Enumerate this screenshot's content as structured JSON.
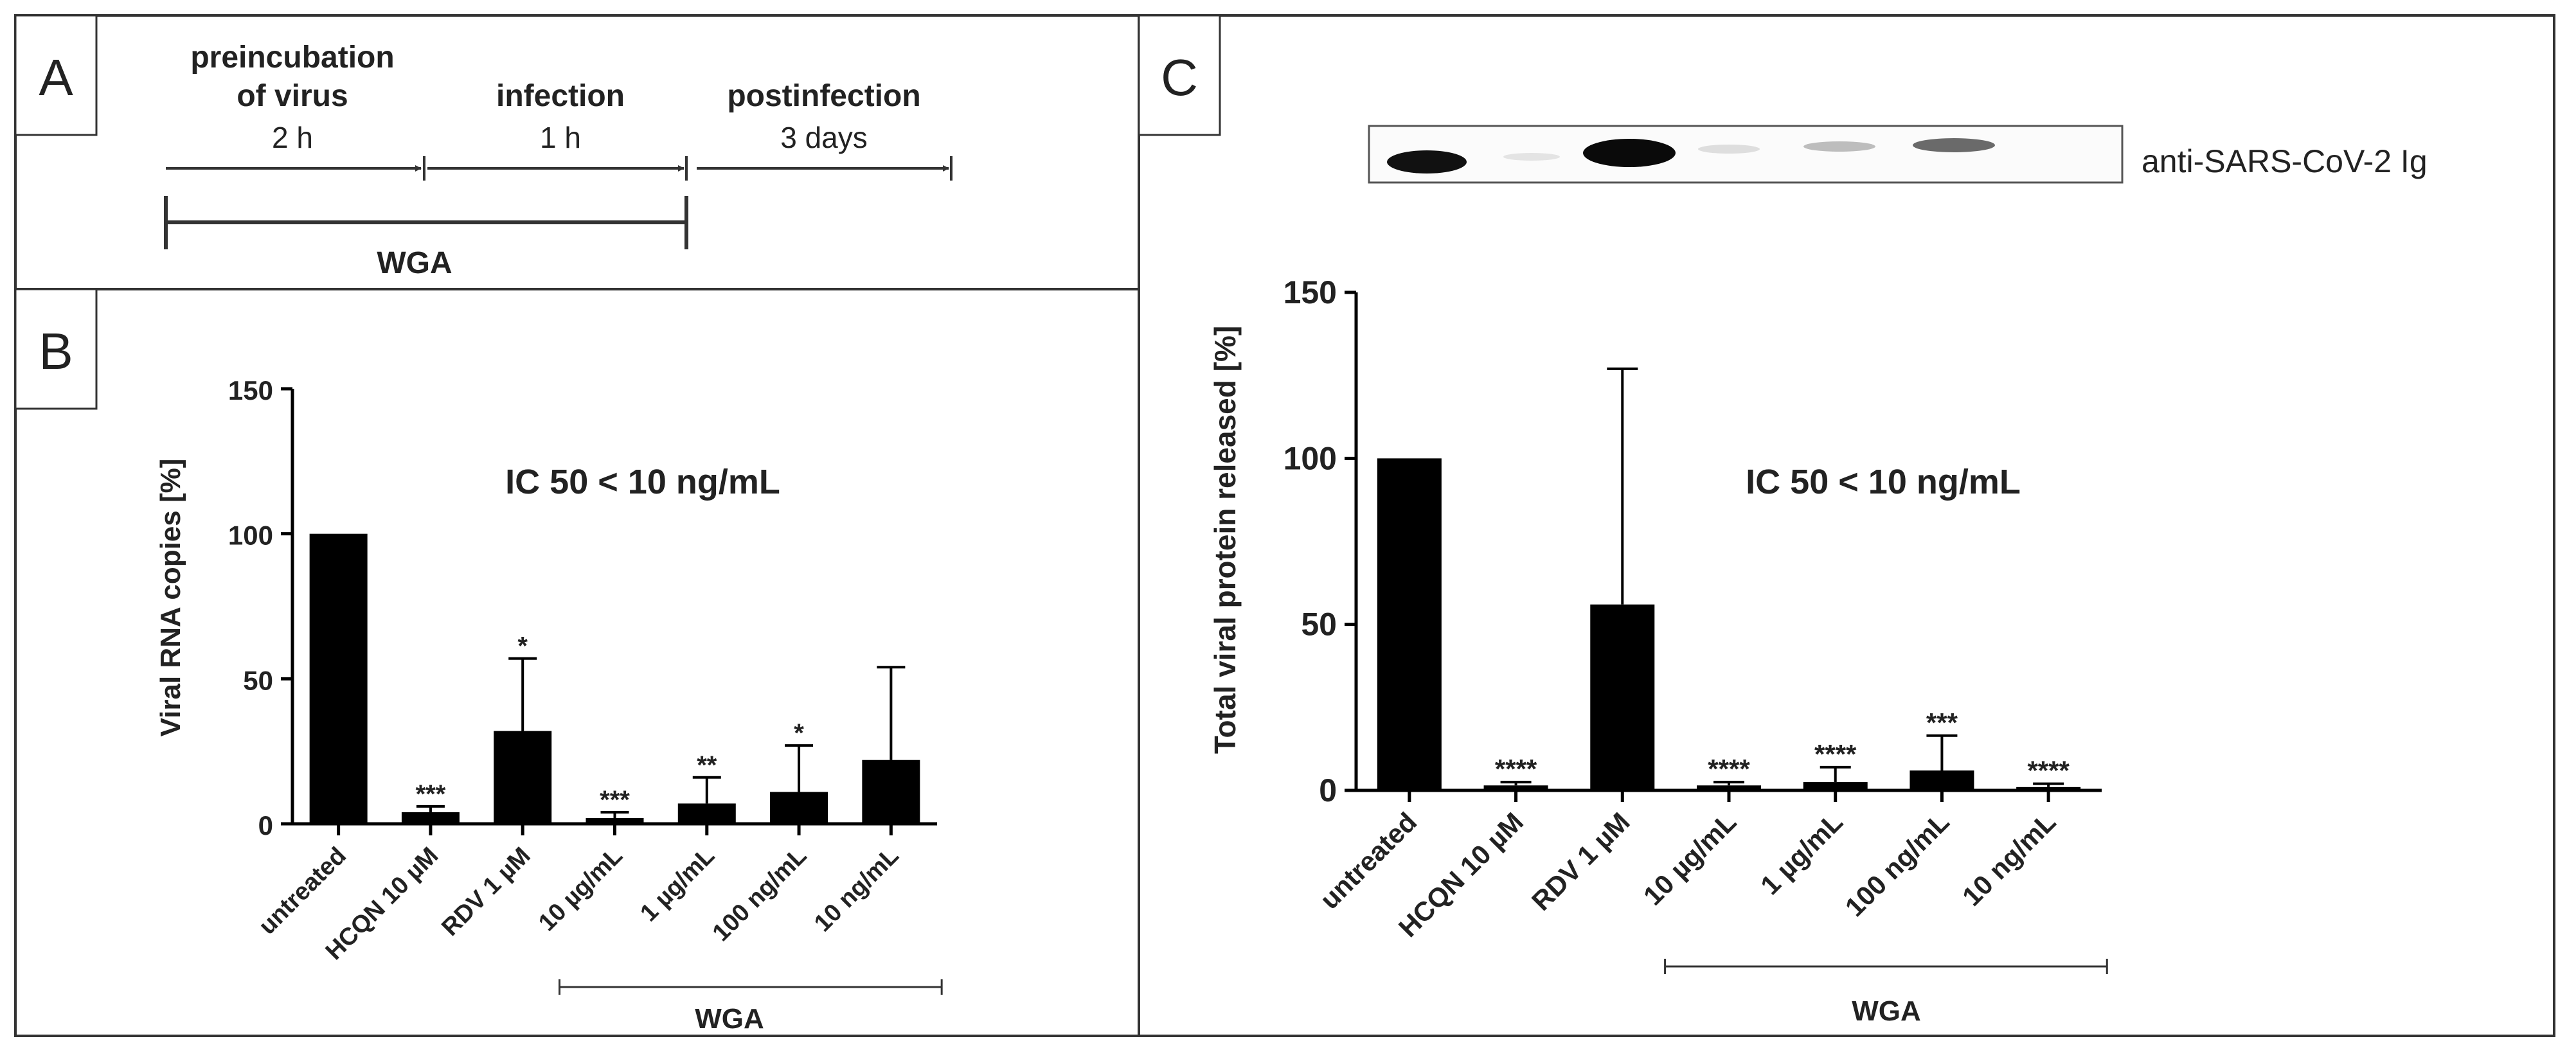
{
  "panels": {
    "a_label": "A",
    "b_label": "B",
    "c_label": "C"
  },
  "timeline": {
    "phases": [
      {
        "title": "preincubation",
        "title2": "of virus",
        "duration": "2 h"
      },
      {
        "title": "infection",
        "duration": "1 h"
      },
      {
        "title": "postinfection",
        "duration": "3 days"
      }
    ],
    "treatment_label": "WGA"
  },
  "blot": {
    "label": "anti-SARS-CoV-2 Ig"
  },
  "colors": {
    "bar": "#000000",
    "axis": "#000000",
    "border": "#333333",
    "text": "#222222"
  },
  "chart_data": [
    {
      "type": "bar",
      "panel": "B",
      "title": "",
      "xlabel": "",
      "ylabel": "Viral RNA copies [%]",
      "ylim": [
        0,
        150
      ],
      "yticks": [
        0,
        50,
        100,
        150
      ],
      "categories": [
        "untreated",
        "HCQN 10 µM",
        "RDV 1 µM",
        "10 µg/mL",
        "1 µg/mL",
        "100 ng/mL",
        "10 ng/mL"
      ],
      "values": [
        100,
        4,
        32,
        2,
        7,
        11,
        22
      ],
      "errors": [
        0,
        2,
        25,
        2,
        9,
        16,
        32
      ],
      "significance": [
        "",
        "***",
        "*",
        "***",
        "**",
        "*",
        ""
      ],
      "annotation": "IC 50 < 10 ng/mL",
      "group_label": "WGA",
      "group_range": [
        "10 µg/mL",
        "10 ng/mL"
      ]
    },
    {
      "type": "bar",
      "panel": "C",
      "title": "",
      "xlabel": "",
      "ylabel": "Total viral protein released [%]",
      "ylim": [
        0,
        150
      ],
      "yticks": [
        0,
        50,
        100,
        150
      ],
      "categories": [
        "untreated",
        "HCQN 10 µM",
        "RDV 1 µM",
        "10 µg/mL",
        "1 µg/mL",
        "100 ng/mL",
        "10 ng/mL"
      ],
      "values": [
        100,
        1.5,
        56,
        1.5,
        2.5,
        6,
        1
      ],
      "errors": [
        0,
        1,
        71,
        1,
        4.5,
        10.5,
        1
      ],
      "significance": [
        "",
        "****",
        "",
        "****",
        "****",
        "***",
        "****"
      ],
      "annotation": "IC 50 < 10 ng/mL",
      "group_label": "WGA",
      "group_range": [
        "10 µg/mL",
        "10 ng/mL"
      ]
    }
  ]
}
